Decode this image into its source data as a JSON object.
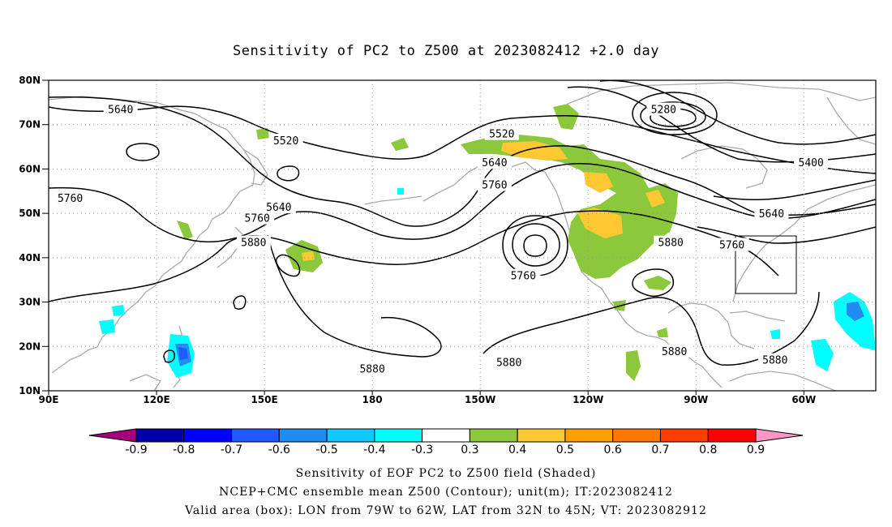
{
  "title": "Sensitivity of PC2 to Z500 at 2023082412 +2.0 day",
  "map": {
    "lat_ticks": [
      "80N",
      "70N",
      "60N",
      "50N",
      "40N",
      "30N",
      "20N",
      "10N"
    ],
    "lon_ticks": [
      "90E",
      "120E",
      "150E",
      "180",
      "150W",
      "120W",
      "90W",
      "60W"
    ],
    "lon_range_deg_east": [
      90,
      320
    ],
    "lat_range": [
      10,
      80
    ],
    "grid": "dotted"
  },
  "contour_labels": [
    {
      "text": "5640",
      "lon": 110,
      "lat": 73.5
    },
    {
      "text": "5520",
      "lon": 156,
      "lat": 66.5
    },
    {
      "text": "5760",
      "lon": 96,
      "lat": 53.5
    },
    {
      "text": "5640",
      "lon": 154,
      "lat": 51.5
    },
    {
      "text": "5760",
      "lon": 148,
      "lat": 49
    },
    {
      "text": "5880",
      "lon": 147,
      "lat": 43.5
    },
    {
      "text": "5520",
      "lon": 216,
      "lat": 68
    },
    {
      "text": "5640",
      "lon": 214,
      "lat": 61.5
    },
    {
      "text": "5760",
      "lon": 214,
      "lat": 56.5
    },
    {
      "text": "5760",
      "lon": 222,
      "lat": 36
    },
    {
      "text": "5880",
      "lon": 180,
      "lat": 15
    },
    {
      "text": "5880",
      "lon": 218,
      "lat": 16.5
    },
    {
      "text": "5880",
      "lon": 263,
      "lat": 43.5
    },
    {
      "text": "5280",
      "lon": 261,
      "lat": 73.5
    },
    {
      "text": "5400",
      "lon": 302,
      "lat": 61.5
    },
    {
      "text": "5640",
      "lon": 291,
      "lat": 50
    },
    {
      "text": "5760",
      "lon": 280,
      "lat": 43
    },
    {
      "text": "5880",
      "lon": 264,
      "lat": 19
    },
    {
      "text": "5880",
      "lon": 292,
      "lat": 17
    }
  ],
  "valid_box": {
    "lon_west": 79,
    "lon_east": 62,
    "lat_south": 32,
    "lat_north": 45
  },
  "colorbar": {
    "colors": [
      "#a6007e",
      "#0000a8",
      "#0000ff",
      "#1e5aff",
      "#1e8cf0",
      "#10c8ff",
      "#00ffff",
      "#ffffff",
      "#8cc83c",
      "#ffc832",
      "#ffa000",
      "#ff7800",
      "#ff3c00",
      "#ff0000",
      "#ff96c8"
    ],
    "tick_labels": [
      "-0.9",
      "-0.8",
      "-0.7",
      "-0.6",
      "-0.5",
      "-0.4",
      "-0.3",
      "0.3",
      "0.4",
      "0.5",
      "0.6",
      "0.7",
      "0.8",
      "0.9"
    ]
  },
  "footer": {
    "line1": "Sensitivity of EOF PC2 to Z500 field (Shaded)",
    "line2": "NCEP+CMC ensemble mean Z500 (Contour); unit(m); IT:2023082412",
    "line3": "Valid area (box): LON from 79W to 62W, LAT from 32N to 45N; VT: 2023082912"
  }
}
